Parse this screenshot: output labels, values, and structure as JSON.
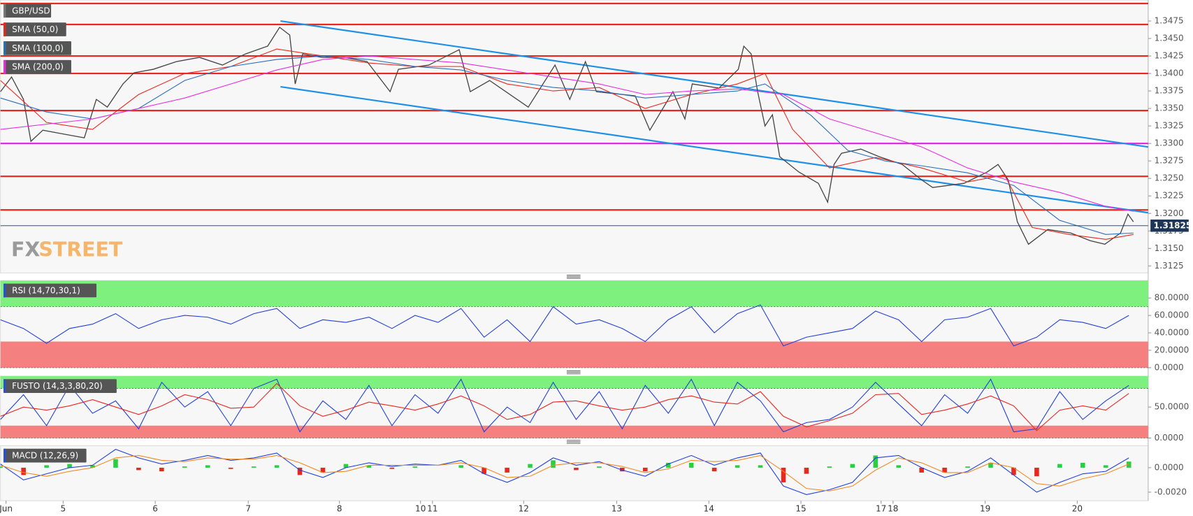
{
  "chart_data": [
    {
      "type": "line",
      "title": "GBP/USD",
      "xlim": [
        0,
        12.46
      ],
      "xticks": [
        {
          "value": 0.06,
          "label": "Jun"
        },
        {
          "value": 0.68,
          "label": "5"
        },
        {
          "value": 1.68,
          "label": "6"
        },
        {
          "value": 2.69,
          "label": "7"
        },
        {
          "value": 3.68,
          "label": "8"
        },
        {
          "value": 4.56,
          "label": "10"
        },
        {
          "value": 4.69,
          "label": "11"
        },
        {
          "value": 5.68,
          "label": "12"
        },
        {
          "value": 6.69,
          "label": "13"
        },
        {
          "value": 7.69,
          "label": "14"
        },
        {
          "value": 8.69,
          "label": "15"
        },
        {
          "value": 9.56,
          "label": "17"
        },
        {
          "value": 9.69,
          "label": "18"
        },
        {
          "value": 10.69,
          "label": "19"
        },
        {
          "value": 11.69,
          "label": "20"
        }
      ],
      "ylim": [
        1.3115,
        1.3505
      ],
      "yticks": [
        1.3125,
        {
          "value": 1.315,
          "label": "1.3150"
        },
        1.3175,
        {
          "value": 1.32,
          "label": "1.3200"
        },
        1.3225,
        {
          "value": 1.325,
          "label": "1.3250"
        },
        1.3275,
        {
          "value": 1.33,
          "label": "1.3300"
        },
        1.3325,
        {
          "value": 1.335,
          "label": "1.3350"
        },
        1.3375,
        {
          "value": 1.34,
          "label": "1.3400"
        },
        1.3425,
        {
          "value": 1.345,
          "label": "1.3450"
        },
        1.3475
      ],
      "series": [
        {
          "color": "#444444",
          "x": [
            0,
            0.12,
            0.25,
            0.33,
            0.46,
            0.66,
            0.91,
            1.04,
            1.16,
            1.33,
            1.45,
            1.66,
            1.91,
            2.16,
            2.41,
            2.66,
            2.9,
            3.03,
            3.14,
            3.2,
            3.28,
            3.49,
            3.73,
            3.98,
            4.23,
            4.32,
            4.65,
            4.98,
            5.1,
            5.31,
            5.73,
            6.02,
            6.18,
            6.35,
            6.47,
            6.89,
            7.05,
            7.3,
            7.43,
            7.51,
            7.8,
            8.01,
            8.07,
            8.15,
            8.22,
            8.3,
            8.38,
            8.46,
            8.67,
            8.88,
            8.98,
            9.05,
            9.13,
            9.34,
            9.54,
            9.79,
            10,
            10.12,
            10.46,
            10.71,
            10.83,
            10.94,
            11.04,
            11.16,
            11.37,
            11.62,
            11.83,
            11.99,
            12.16,
            12.24,
            12.3
          ],
          "values": [
            1.3374,
            1.3395,
            1.3363,
            1.3303,
            1.3319,
            1.3314,
            1.3308,
            1.3363,
            1.3352,
            1.3385,
            1.3401,
            1.3406,
            1.3417,
            1.3423,
            1.3412,
            1.3428,
            1.3439,
            1.3466,
            1.3455,
            1.3385,
            1.3428,
            1.3423,
            1.3423,
            1.3417,
            1.3374,
            1.3406,
            1.3412,
            1.3434,
            1.3374,
            1.339,
            1.3352,
            1.3412,
            1.3363,
            1.3417,
            1.3374,
            1.3368,
            1.3319,
            1.3374,
            1.3335,
            1.3385,
            1.3379,
            1.3406,
            1.3439,
            1.3428,
            1.3374,
            1.3325,
            1.3341,
            1.3281,
            1.3259,
            1.3243,
            1.3216,
            1.327,
            1.3286,
            1.3292,
            1.3281,
            1.327,
            1.3248,
            1.3237,
            1.3243,
            1.3259,
            1.327,
            1.3248,
            1.3188,
            1.3156,
            1.3177,
            1.3172,
            1.3161,
            1.3156,
            1.3172,
            1.3199,
            1.3188
          ]
        },
        {
          "name": "SMA (50,0)",
          "color": "#e8271e",
          "x": [
            0,
            0.5,
            1,
            1.5,
            2,
            2.5,
            3,
            3.5,
            4,
            4.5,
            5,
            5.5,
            6,
            6.5,
            7,
            7.5,
            8,
            8.3,
            8.6,
            9,
            9.5,
            10,
            10.5,
            10.9,
            11.2,
            11.6,
            12,
            12.3
          ],
          "values": [
            1.339,
            1.333,
            1.332,
            1.337,
            1.34,
            1.341,
            1.3435,
            1.3425,
            1.3415,
            1.341,
            1.341,
            1.3385,
            1.3375,
            1.338,
            1.335,
            1.337,
            1.3385,
            1.34,
            1.332,
            1.3265,
            1.328,
            1.3265,
            1.3245,
            1.3255,
            1.318,
            1.317,
            1.3163,
            1.317
          ]
        },
        {
          "name": "SMA (100,0)",
          "color": "#2a6ebb",
          "x": [
            0,
            0.5,
            1,
            1.5,
            2,
            2.5,
            3,
            3.5,
            4,
            4.5,
            5,
            5.5,
            6,
            6.5,
            7,
            7.5,
            8,
            8.3,
            8.8,
            9.2,
            9.6,
            10,
            10.5,
            11,
            11.5,
            12,
            12.3
          ],
          "values": [
            1.3365,
            1.3345,
            1.3335,
            1.335,
            1.339,
            1.341,
            1.342,
            1.3425,
            1.342,
            1.341,
            1.3405,
            1.339,
            1.338,
            1.3375,
            1.3365,
            1.337,
            1.3375,
            1.3385,
            1.334,
            1.329,
            1.3275,
            1.3268,
            1.3258,
            1.324,
            1.319,
            1.317,
            1.3172
          ]
        },
        {
          "name": "SMA (200,0)",
          "color": "#e62ee0",
          "x": [
            0,
            1,
            2,
            3,
            3.5,
            4,
            5,
            6,
            6.5,
            7,
            7.5,
            8,
            8.5,
            9,
            9.5,
            10,
            10.5,
            11,
            11.5,
            12,
            12.3
          ],
          "values": [
            1.332,
            1.3335,
            1.3365,
            1.3405,
            1.342,
            1.3425,
            1.3415,
            1.3395,
            1.3385,
            1.337,
            1.3375,
            1.3378,
            1.337,
            1.3335,
            1.3315,
            1.3295,
            1.3265,
            1.3245,
            1.323,
            1.321,
            1.3203
          ]
        }
      ],
      "levels": [
        {
          "value": 1.35,
          "color": "#e8271e"
        },
        {
          "value": 1.347,
          "color": "#e8271e"
        },
        {
          "value": 1.3425,
          "color": "#e8271e"
        },
        {
          "value": 1.34,
          "color": "#e8271e"
        },
        {
          "value": 1.3347,
          "color": "#e8271e"
        },
        {
          "value": 1.33,
          "color": "#e020e0"
        },
        {
          "value": 1.3253,
          "color": "#e8271e"
        },
        {
          "value": 1.3205,
          "color": "#e8271e"
        }
      ],
      "channels": [
        {
          "x": [
            3.04,
            12.46
          ],
          "values": [
            1.3475,
            1.3295
          ],
          "color": "#1e90e6"
        },
        {
          "x": [
            3.04,
            12.46
          ],
          "values": [
            1.3381,
            1.3201
          ],
          "color": "#1e90e6"
        }
      ],
      "last_price": 1.31825,
      "watermark": [
        "FX",
        "STREET"
      ]
    },
    {
      "type": "oscillator",
      "title": "RSI (14,70,30,1)",
      "xlim": [
        0,
        12.46
      ],
      "ylim": [
        0,
        100
      ],
      "yticks": [
        {
          "value": 0,
          "label": "0.0000"
        },
        {
          "value": 20,
          "label": "20.0000"
        },
        {
          "value": 40,
          "label": "40.0000"
        },
        {
          "value": 60,
          "label": "60.0000"
        },
        {
          "value": 80,
          "label": "80.0000"
        }
      ],
      "bands": [
        {
          "from": 70,
          "to": 100,
          "color": "#7ef07e"
        },
        {
          "from": 0,
          "to": 30,
          "color": "#f58080"
        }
      ],
      "x": [
        0,
        0.25,
        0.5,
        0.75,
        1,
        1.25,
        1.5,
        1.75,
        2,
        2.25,
        2.5,
        2.75,
        3,
        3.25,
        3.5,
        3.75,
        4,
        4.25,
        4.5,
        4.75,
        5,
        5.25,
        5.5,
        5.75,
        6,
        6.25,
        6.5,
        6.75,
        7,
        7.25,
        7.5,
        7.75,
        8,
        8.25,
        8.5,
        8.75,
        9,
        9.25,
        9.5,
        9.75,
        10,
        10.25,
        10.5,
        10.75,
        11,
        11.25,
        11.5,
        11.75,
        12,
        12.25
      ],
      "series": [
        {
          "color": "#1f3fd8",
          "values": [
            55,
            45,
            28,
            45,
            50,
            62,
            45,
            55,
            60,
            58,
            50,
            62,
            68,
            45,
            55,
            52,
            58,
            45,
            60,
            52,
            68,
            35,
            55,
            30,
            70,
            50,
            55,
            45,
            30,
            55,
            70,
            40,
            62,
            72,
            25,
            35,
            40,
            45,
            65,
            55,
            30,
            55,
            58,
            68,
            25,
            35,
            55,
            52,
            45,
            60
          ]
        }
      ]
    },
    {
      "type": "oscillator",
      "title": "FUSTO (14,3,3,80,20)",
      "xlim": [
        0,
        12.46
      ],
      "ylim": [
        0,
        100
      ],
      "yticks": [
        {
          "value": 0,
          "label": "0.0000"
        },
        {
          "value": 50,
          "label": "50.0000"
        }
      ],
      "bands": [
        {
          "from": 80,
          "to": 100,
          "color": "#7ef07e"
        },
        {
          "from": 0,
          "to": 20,
          "color": "#f58080"
        }
      ],
      "x": [
        0,
        0.25,
        0.5,
        0.75,
        1,
        1.25,
        1.5,
        1.75,
        2,
        2.25,
        2.5,
        2.75,
        3,
        3.25,
        3.5,
        3.75,
        4,
        4.25,
        4.5,
        4.75,
        5,
        5.25,
        5.5,
        5.75,
        6,
        6.25,
        6.5,
        6.75,
        7,
        7.25,
        7.5,
        7.75,
        8,
        8.25,
        8.5,
        8.75,
        9,
        9.25,
        9.5,
        9.75,
        10,
        10.25,
        10.5,
        10.75,
        11,
        11.25,
        11.5,
        11.75,
        12,
        12.25
      ],
      "series": [
        {
          "color": "#1f3fd8",
          "values": [
            30,
            70,
            20,
            85,
            40,
            60,
            15,
            90,
            50,
            75,
            20,
            80,
            95,
            10,
            60,
            30,
            85,
            20,
            70,
            40,
            95,
            10,
            50,
            25,
            90,
            30,
            75,
            15,
            85,
            40,
            95,
            20,
            90,
            60,
            10,
            25,
            30,
            50,
            90,
            55,
            20,
            70,
            40,
            95,
            10,
            15,
            75,
            30,
            60,
            85
          ]
        },
        {
          "color": "#e8271e",
          "values": [
            35,
            50,
            45,
            52,
            62,
            50,
            38,
            52,
            70,
            62,
            48,
            50,
            88,
            52,
            35,
            45,
            58,
            52,
            45,
            55,
            68,
            52,
            30,
            38,
            58,
            60,
            52,
            45,
            50,
            62,
            68,
            58,
            55,
            75,
            35,
            18,
            28,
            40,
            70,
            72,
            38,
            45,
            55,
            68,
            52,
            12,
            45,
            52,
            45,
            72
          ]
        }
      ]
    },
    {
      "type": "macd",
      "title": "MACD (12,26,9)",
      "xlim": [
        0,
        12.46
      ],
      "ylim": [
        -0.0027,
        0.0018
      ],
      "yticks": [
        {
          "value": -0.002,
          "label": "-0.0020"
        },
        {
          "value": 0,
          "label": "0.0000"
        }
      ],
      "x": [
        0,
        0.25,
        0.5,
        0.75,
        1,
        1.25,
        1.5,
        1.75,
        2,
        2.25,
        2.5,
        2.75,
        3,
        3.25,
        3.5,
        3.75,
        4,
        4.25,
        4.5,
        4.75,
        5,
        5.25,
        5.5,
        5.75,
        6,
        6.25,
        6.5,
        6.75,
        7,
        7.25,
        7.5,
        7.75,
        8,
        8.25,
        8.5,
        8.75,
        9,
        9.25,
        9.5,
        9.75,
        10,
        10.25,
        10.5,
        10.75,
        11,
        11.25,
        11.5,
        11.75,
        12,
        12.25
      ],
      "series": [
        {
          "color": "#1f3fd8",
          "values": [
            0.0003,
            -0.001,
            -0.0005,
            0,
            0.0002,
            0.0015,
            0.0008,
            0.0003,
            0.0006,
            0.001,
            0.0006,
            0.0008,
            0.0012,
            -0.0002,
            -0.0008,
            0,
            0.0004,
            0.0001,
            0.0003,
            0.0002,
            0.0006,
            -0.0005,
            -0.0012,
            -0.0004,
            0.0008,
            0.0002,
            0.0005,
            -0.0002,
            -0.0007,
            0.0003,
            0.001,
            0.0002,
            0.0008,
            0.0012,
            -0.0015,
            -0.0022,
            -0.0018,
            -0.0012,
            0.0008,
            0.001,
            0,
            -0.0008,
            -0.0003,
            0.0008,
            -0.0006,
            -0.002,
            -0.0012,
            -0.0005,
            -0.0003,
            0.0008
          ]
        },
        {
          "color": "#f08a24",
          "values": [
            0.0002,
            -0.0004,
            -0.0007,
            -0.0003,
            0,
            0.0008,
            0.001,
            0.0006,
            0.0005,
            0.0008,
            0.0007,
            0.0007,
            0.001,
            0.0004,
            -0.0004,
            -0.0003,
            0.0002,
            0.0002,
            0.0002,
            0.0002,
            0.0004,
            0,
            -0.0008,
            -0.0007,
            0.0002,
            0.0004,
            0.0004,
            0.0001,
            -0.0004,
            -0.0001,
            0.0006,
            0.0005,
            0.0006,
            0.001,
            -0.0003,
            -0.0017,
            -0.0019,
            -0.0015,
            -0.0002,
            0.0008,
            0.0004,
            -0.0004,
            -0.0004,
            0.0004,
            0,
            -0.0013,
            -0.0015,
            -0.0009,
            -0.0005,
            0.0003
          ]
        }
      ],
      "histogram": [
        0.0001,
        -0.0006,
        0.0002,
        0.0003,
        0.0002,
        0.0007,
        -0.0002,
        -0.0003,
        0.0001,
        0.0002,
        -0.0001,
        0.0001,
        0.0002,
        -0.0006,
        -0.0004,
        0.0003,
        0.0002,
        -0.0001,
        0.0001,
        0,
        0.0002,
        -0.0005,
        -0.0004,
        0.0003,
        0.0006,
        -0.0002,
        0.0001,
        -0.0003,
        -0.0003,
        0.0004,
        0.0004,
        -0.0003,
        0.0002,
        0.0002,
        -0.0012,
        -0.0005,
        0.0001,
        0.0003,
        0.001,
        0.0002,
        -0.0004,
        -0.0004,
        0.0001,
        0.0004,
        -0.0006,
        -0.0007,
        0.0003,
        0.0004,
        0.0002,
        0.0005
      ],
      "color_up": "#2ecc40",
      "color_down": "#e8271e"
    }
  ]
}
